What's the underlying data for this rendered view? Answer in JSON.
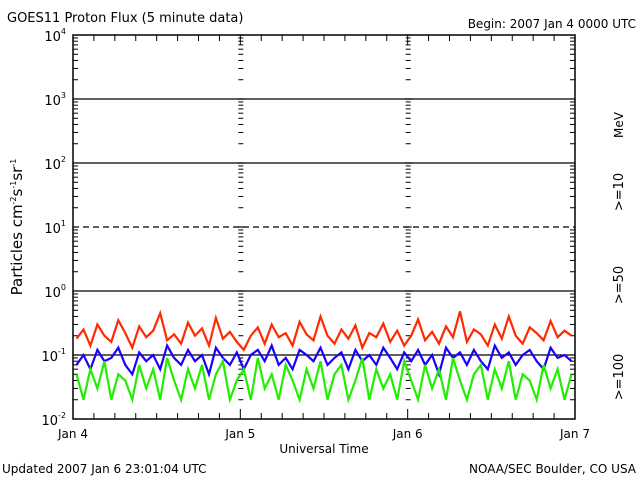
{
  "chart_data": {
    "type": "line",
    "title": "GOES11 Proton Flux (5 minute data)",
    "begin": "Begin: 2007 Jan 4 0000 UTC",
    "xlabel": "Universal Time",
    "ylabel": {
      "text": "Particles cm",
      "e1": "-2",
      "s": "s",
      "e2": "-1",
      "sr": "sr",
      "e3": "-1"
    },
    "yscale": "log",
    "ylim": [
      0.01,
      10000
    ],
    "xlim_hours": [
      0,
      72
    ],
    "x_tick_labels": [
      "Jan 4",
      "Jan 5",
      "Jan 6",
      "Jan 7"
    ],
    "y_tick_labels": [
      {
        "base": "10",
        "exp": "4"
      },
      {
        "base": "10",
        "exp": "3"
      },
      {
        "base": "10",
        "exp": "2"
      },
      {
        "base": "10",
        "exp": "1"
      },
      {
        "base": "10",
        "exp": "0"
      },
      {
        "base": "10",
        "exp": "-1"
      },
      {
        "base": "10",
        "exp": "-2"
      }
    ],
    "unit_label": "MeV",
    "x_hours_step": 1,
    "series": [
      {
        "name": ">=10",
        "color": "#ff2a00",
        "values": [
          0.18,
          0.25,
          0.14,
          0.3,
          0.2,
          0.16,
          0.35,
          0.22,
          0.13,
          0.28,
          0.19,
          0.24,
          0.45,
          0.17,
          0.21,
          0.15,
          0.32,
          0.2,
          0.26,
          0.14,
          0.38,
          0.18,
          0.23,
          0.16,
          0.12,
          0.2,
          0.27,
          0.15,
          0.3,
          0.19,
          0.22,
          0.14,
          0.33,
          0.21,
          0.17,
          0.4,
          0.2,
          0.15,
          0.25,
          0.18,
          0.29,
          0.13,
          0.22,
          0.19,
          0.31,
          0.16,
          0.24,
          0.14,
          0.2,
          0.36,
          0.17,
          0.23,
          0.15,
          0.28,
          0.19,
          0.48,
          0.16,
          0.25,
          0.21,
          0.14,
          0.3,
          0.18,
          0.4,
          0.2,
          0.15,
          0.27,
          0.22,
          0.17,
          0.34,
          0.19,
          0.24,
          0.2
        ]
      },
      {
        "name": ">=50",
        "color": "#1a00ff",
        "values": [
          0.07,
          0.1,
          0.06,
          0.12,
          0.08,
          0.09,
          0.13,
          0.07,
          0.05,
          0.11,
          0.08,
          0.1,
          0.06,
          0.14,
          0.09,
          0.07,
          0.12,
          0.08,
          0.1,
          0.05,
          0.13,
          0.09,
          0.07,
          0.11,
          0.06,
          0.1,
          0.12,
          0.08,
          0.14,
          0.07,
          0.09,
          0.06,
          0.12,
          0.1,
          0.08,
          0.13,
          0.07,
          0.09,
          0.11,
          0.06,
          0.12,
          0.08,
          0.1,
          0.07,
          0.13,
          0.09,
          0.06,
          0.11,
          0.08,
          0.12,
          0.07,
          0.1,
          0.05,
          0.13,
          0.09,
          0.11,
          0.07,
          0.12,
          0.08,
          0.06,
          0.14,
          0.09,
          0.11,
          0.07,
          0.1,
          0.12,
          0.08,
          0.06,
          0.13,
          0.09,
          0.1,
          0.08
        ]
      },
      {
        "name": ">=100",
        "color": "#22ee00",
        "values": [
          0.05,
          0.02,
          0.06,
          0.03,
          0.08,
          0.02,
          0.05,
          0.04,
          0.02,
          0.07,
          0.03,
          0.06,
          0.02,
          0.09,
          0.04,
          0.02,
          0.06,
          0.03,
          0.07,
          0.02,
          0.05,
          0.08,
          0.02,
          0.04,
          0.06,
          0.02,
          0.09,
          0.03,
          0.05,
          0.02,
          0.07,
          0.04,
          0.02,
          0.06,
          0.03,
          0.08,
          0.02,
          0.05,
          0.07,
          0.02,
          0.04,
          0.09,
          0.02,
          0.06,
          0.03,
          0.05,
          0.02,
          0.08,
          0.04,
          0.02,
          0.07,
          0.03,
          0.06,
          0.02,
          0.09,
          0.04,
          0.02,
          0.05,
          0.07,
          0.02,
          0.06,
          0.03,
          0.08,
          0.02,
          0.05,
          0.04,
          0.02,
          0.07,
          0.03,
          0.06,
          0.02,
          0.05
        ]
      }
    ]
  },
  "footer": {
    "updated": "Updated 2007 Jan  6 23:01:04 UTC",
    "credit": "NOAA/SEC Boulder, CO USA"
  }
}
